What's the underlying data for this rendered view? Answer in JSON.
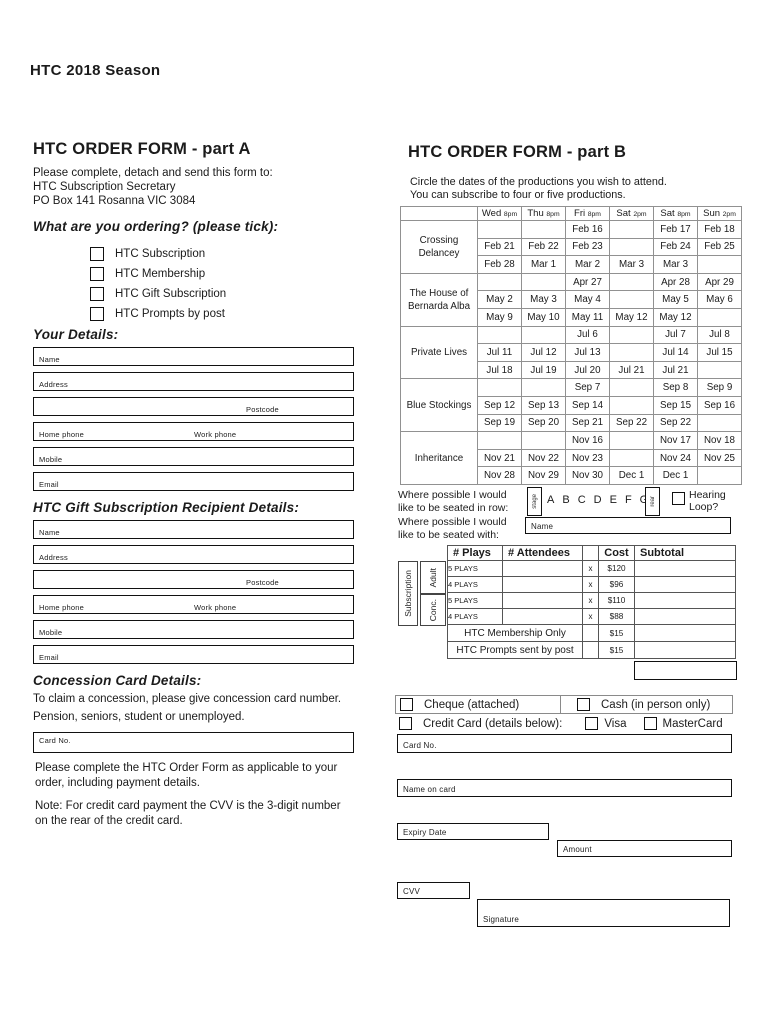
{
  "page": {
    "title": "HTC 2018 Season"
  },
  "part_a": {
    "heading": "HTC ORDER FORM - part A",
    "intro_lines": [
      "Please complete, detach and send this form to:",
      "HTC Subscription Secretary",
      "PO Box 141 Rosanna VIC 3084"
    ],
    "ordering_heading": "What are you ordering? (please tick):",
    "ordering_options": [
      "HTC Subscription",
      "HTC Membership",
      "HTC Gift Subscription",
      "HTC Prompts by post"
    ],
    "your_details_heading": "Your Details:",
    "gift_heading": "HTC Gift Subscription Recipient Details:",
    "field_labels": {
      "name": "Name",
      "address": "Address",
      "postcode": "Postcode",
      "home_phone": "Home phone",
      "work_phone": "Work phone",
      "mobile": "Mobile",
      "email": "Email"
    },
    "concession": {
      "heading": "Concession Card Details:",
      "line1": "To claim a concession, please give concession card number.",
      "line2": "Pension, seniors, student or unemployed.",
      "card_no_label": "Card No.",
      "note1": "Please complete the HTC Order Form as applicable to your order, including payment details.",
      "note2": "Note: For credit card payment the CVV is the 3-digit number on the rear of the credit card."
    }
  },
  "part_b": {
    "heading": "HTC ORDER FORM - part B",
    "intro_lines": [
      "Circle the dates of the productions you wish to attend.",
      "You can subscribe to four or five productions."
    ],
    "dates_table": {
      "columns": [
        {
          "day": "Wed",
          "time": "8pm"
        },
        {
          "day": "Thu",
          "time": "8pm"
        },
        {
          "day": "Fri",
          "time": "8pm"
        },
        {
          "day": "Sat",
          "time": "2pm"
        },
        {
          "day": "Sat",
          "time": "8pm"
        },
        {
          "day": "Sun",
          "time": "2pm"
        }
      ],
      "productions": [
        {
          "name": "Crossing Delancey",
          "rows": [
            [
              "",
              "",
              "Feb 16",
              "",
              "Feb 17",
              "Feb 18"
            ],
            [
              "Feb 21",
              "Feb 22",
              "Feb 23",
              "",
              "Feb 24",
              "Feb 25"
            ],
            [
              "Feb 28",
              "Mar 1",
              "Mar 2",
              "Mar 3",
              "Mar 3",
              ""
            ]
          ]
        },
        {
          "name": "The House of Bernarda Alba",
          "rows": [
            [
              "",
              "",
              "Apr 27",
              "",
              "Apr 28",
              "Apr 29"
            ],
            [
              "May 2",
              "May 3",
              "May 4",
              "",
              "May 5",
              "May 6"
            ],
            [
              "May 9",
              "May 10",
              "May 11",
              "May 12",
              "May 12",
              ""
            ]
          ]
        },
        {
          "name": "Private Lives",
          "rows": [
            [
              "",
              "",
              "Jul 6",
              "",
              "Jul 7",
              "Jul 8"
            ],
            [
              "Jul 11",
              "Jul 12",
              "Jul 13",
              "",
              "Jul 14",
              "Jul 15"
            ],
            [
              "Jul 18",
              "Jul 19",
              "Jul 20",
              "Jul 21",
              "Jul 21",
              ""
            ]
          ]
        },
        {
          "name": "Blue Stockings",
          "rows": [
            [
              "",
              "",
              "Sep 7",
              "",
              "Sep 8",
              "Sep 9"
            ],
            [
              "Sep 12",
              "Sep 13",
              "Sep 14",
              "",
              "Sep 15",
              "Sep 16"
            ],
            [
              "Sep 19",
              "Sep 20",
              "Sep 21",
              "Sep 22",
              "Sep 22",
              ""
            ]
          ]
        },
        {
          "name": "Inheritance",
          "rows": [
            [
              "",
              "",
              "Nov 16",
              "",
              "Nov 17",
              "Nov 18"
            ],
            [
              "Nov 21",
              "Nov 22",
              "Nov 23",
              "",
              "Nov 24",
              "Nov 25"
            ],
            [
              "Nov 28",
              "Nov 29",
              "Nov 30",
              "Dec 1",
              "Dec 1",
              ""
            ]
          ]
        }
      ]
    },
    "seating": {
      "row_label": "Where possible I would like to be seated in row:",
      "stage_label": "stage",
      "letters": [
        "A",
        "B",
        "C",
        "D",
        "E",
        "F",
        "G"
      ],
      "rear_label": "rear",
      "hearing_loop_label": "Hearing Loop?",
      "with_label": "Where possible I would like to be seated with:",
      "name_label": "Name"
    },
    "pricing": {
      "plays_header": "# Plays",
      "attendees_header": "# Attendees",
      "cost_header": "Cost",
      "subtotal_header": "Subtotal",
      "subscription_label": "Subscription",
      "adult_label": "Adult",
      "conc_label": "Conc.",
      "rows": [
        {
          "plays": "5 PLAYS",
          "x": "x",
          "cost": "$120"
        },
        {
          "plays": "4 PLAYS",
          "x": "x",
          "cost": "$96"
        },
        {
          "plays": "5 PLAYS",
          "x": "x",
          "cost": "$110"
        },
        {
          "plays": "4 PLAYS",
          "x": "x",
          "cost": "$88"
        }
      ],
      "membership_row": {
        "label": "HTC Membership Only",
        "cost": "$15"
      },
      "prompts_row": {
        "label": "HTC Prompts sent by post",
        "cost": "$15"
      }
    },
    "payment": {
      "cheque_label": "Cheque (attached)",
      "cash_label": "Cash (in person only)",
      "credit_label": "Credit Card (details below):",
      "visa_label": "Visa",
      "mastercard_label": "MasterCard",
      "card_no_label": "Card No.",
      "name_on_card_label": "Name on card",
      "expiry_label": "Expiry Date",
      "amount_label": "Amount",
      "cvv_label": "CVV",
      "signature_label": "Signature"
    }
  }
}
